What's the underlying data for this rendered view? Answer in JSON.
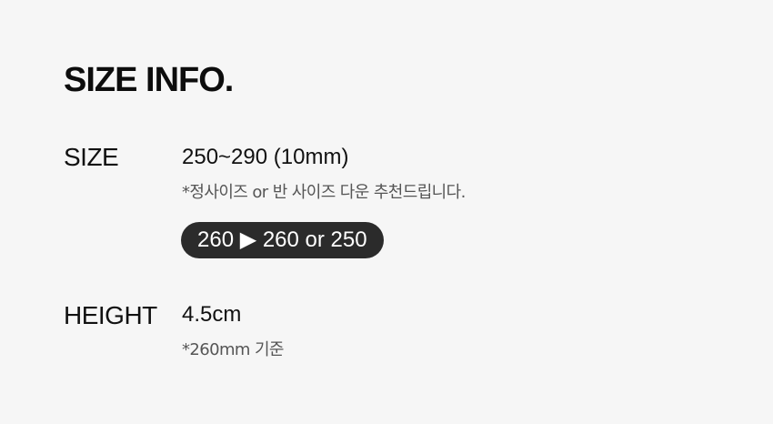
{
  "title": "SIZE INFO.",
  "size": {
    "label": "SIZE",
    "value": "250~290 (10mm)",
    "note": "*정사이즈 or 반 사이즈 다운 추천드립니다.",
    "recommendation": "260 ▶ 260 or 250"
  },
  "height": {
    "label": "HEIGHT",
    "value": "4.5cm",
    "note": "*260mm 기준"
  }
}
